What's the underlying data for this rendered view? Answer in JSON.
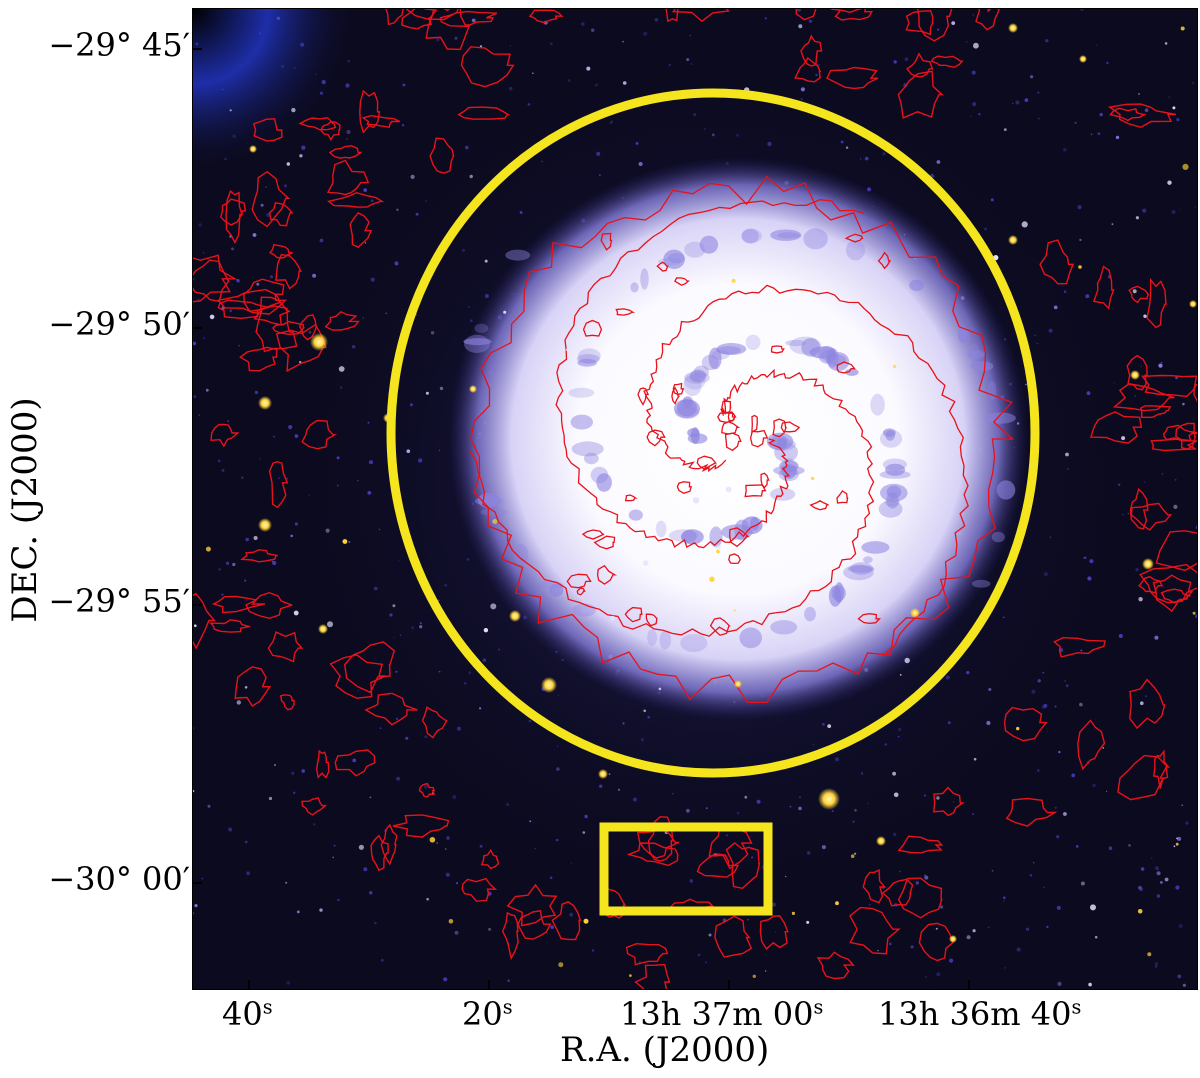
{
  "figure": {
    "y_axis_title": "DEC. (J2000)",
    "x_axis_title": "R.A. (J2000)",
    "y_ticks": [
      "−29° 45′",
      "−29° 50′",
      "−29° 55′",
      "−30° 00′"
    ],
    "x_ticks": [
      {
        "main": "40",
        "unit": "s"
      },
      {
        "main": "20",
        "unit": "s"
      },
      {
        "main": "13h 37m 00",
        "unit": "s"
      },
      {
        "main": "13h 36m 40",
        "unit": "s"
      }
    ]
  },
  "colors": {
    "sky": "#0b0a1e",
    "galaxy_core": "#ffffff",
    "arm_glow": "#8d84e0",
    "contour": "#e8121b",
    "marker": "#f5e51e",
    "star": "#ffd43a"
  },
  "annotations": {
    "circle_color": "#f5e51e",
    "box_color": "#f5e51e"
  }
}
